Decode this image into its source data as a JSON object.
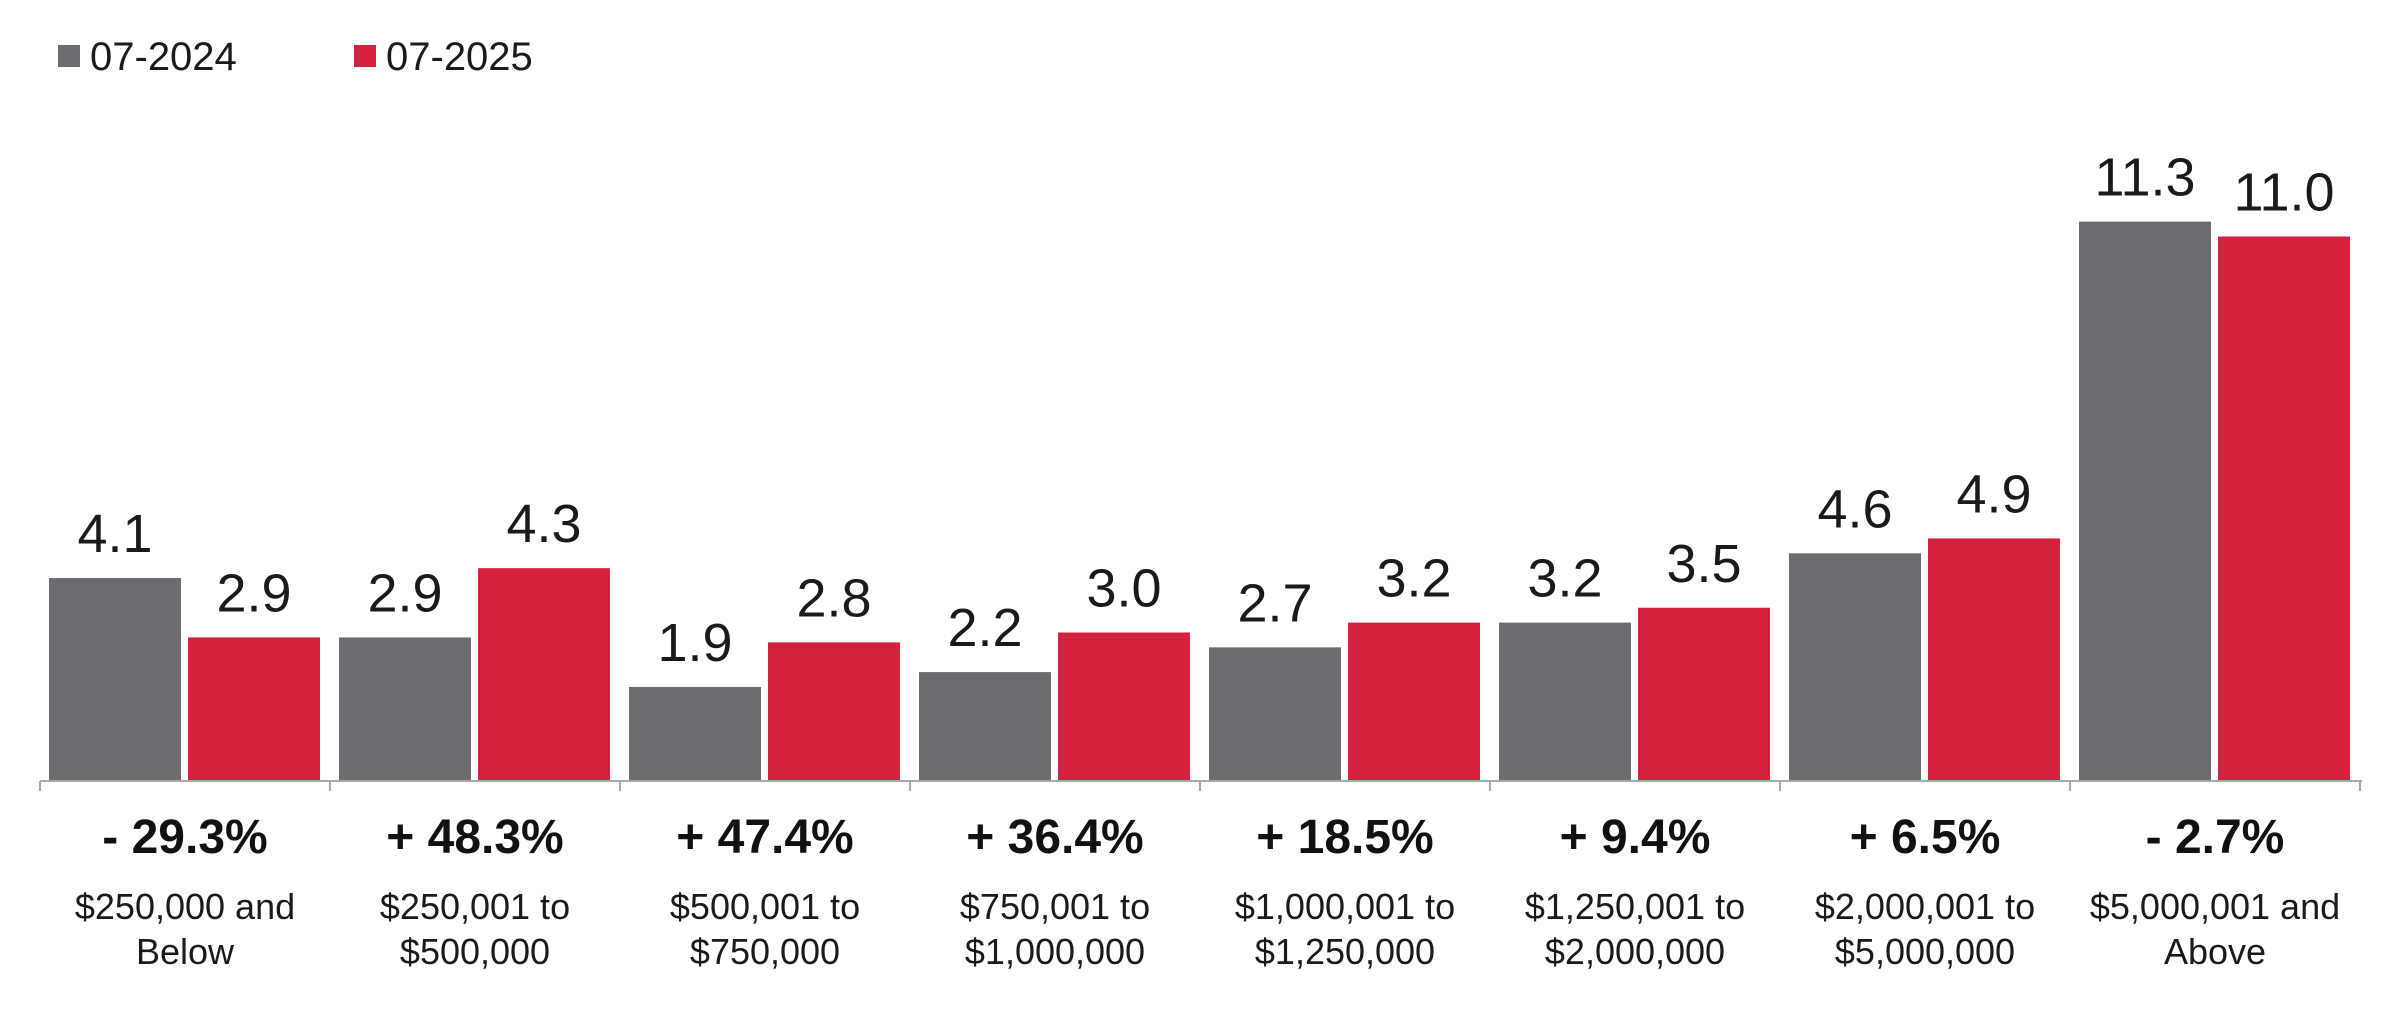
{
  "colors": {
    "series_2024": "#6b6b70",
    "series_2025": "#d4213d",
    "axis": "#a8a8a8"
  },
  "chart_data": {
    "type": "bar",
    "categories": [
      [
        "$250,000 and",
        "Below"
      ],
      [
        "$250,001 to",
        "$500,000"
      ],
      [
        "$500,001 to",
        "$750,000"
      ],
      [
        "$750,001 to",
        "$1,000,000"
      ],
      [
        "$1,000,001 to",
        "$1,250,000"
      ],
      [
        "$1,250,001 to",
        "$2,000,000"
      ],
      [
        "$2,000,001 to",
        "$5,000,000"
      ],
      [
        "$5,000,001 and",
        "Above"
      ]
    ],
    "series": [
      {
        "name": "07-2024",
        "values": [
          4.1,
          2.9,
          1.9,
          2.2,
          2.7,
          3.2,
          4.6,
          11.3
        ]
      },
      {
        "name": "07-2025",
        "values": [
          2.9,
          4.3,
          2.8,
          3.0,
          3.2,
          3.5,
          4.9,
          11.0
        ]
      }
    ],
    "value_labels": [
      [
        "4.1",
        "2.9",
        "1.9",
        "2.2",
        "2.7",
        "3.2",
        "4.6",
        "11.3"
      ],
      [
        "2.9",
        "4.3",
        "2.8",
        "3.0",
        "3.2",
        "3.5",
        "4.9",
        "11.0"
      ]
    ],
    "changes": [
      "- 29.3%",
      "+ 48.3%",
      "+ 47.4%",
      "+ 36.4%",
      "+ 18.5%",
      "+ 9.4%",
      "+ 6.5%",
      "- 2.7%"
    ],
    "ylim": [
      0,
      12.5
    ],
    "legend_position": "top-left",
    "grid": false
  }
}
